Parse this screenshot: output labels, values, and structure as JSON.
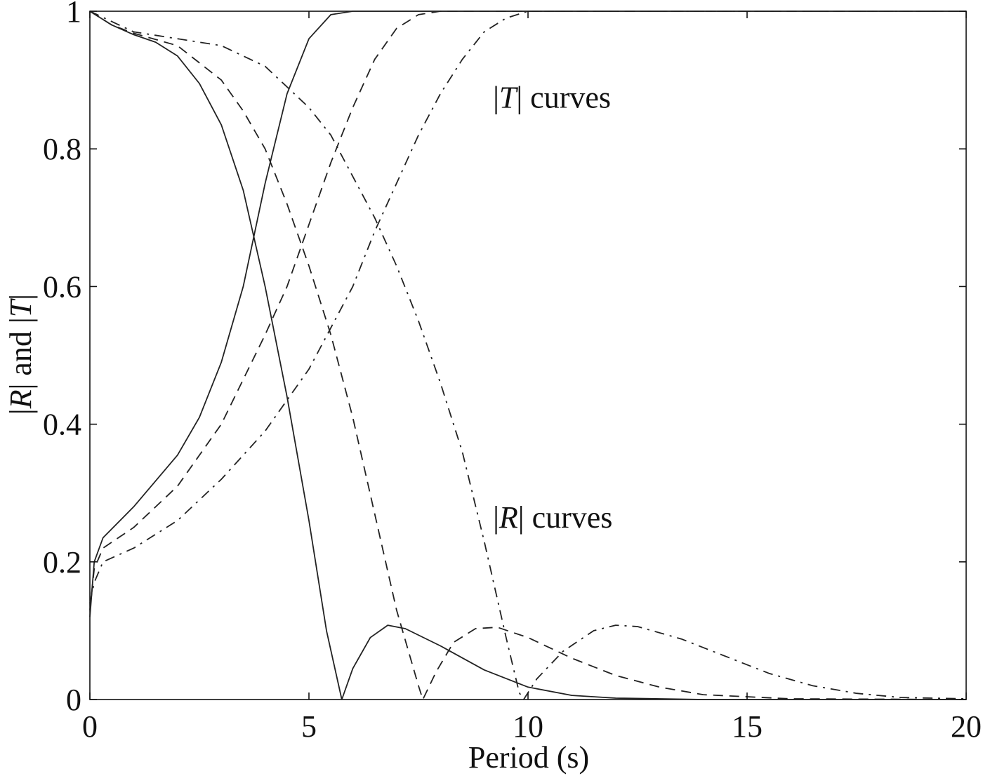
{
  "chart_data": {
    "type": "line",
    "xlabel": "Period (s)",
    "ylabel_parts": [
      "|",
      "R",
      "| and |",
      "T",
      "|"
    ],
    "xlim": [
      0,
      20
    ],
    "ylim": [
      0,
      1
    ],
    "xticks": [
      0,
      5,
      10,
      15,
      20
    ],
    "xtick_labels": [
      "0",
      "5",
      "10",
      "15",
      "20"
    ],
    "yticks": [
      0,
      0.2,
      0.4,
      0.6,
      0.8,
      1
    ],
    "ytick_labels": [
      "0",
      "0.2",
      "0.4",
      "0.6",
      "0.8",
      "1"
    ],
    "grid": false,
    "annotations": [
      {
        "id": "t",
        "pre": "|",
        "it": "T",
        "post": "| curves",
        "x": 9.2,
        "y": 0.86
      },
      {
        "id": "r",
        "pre": "|",
        "it": "R",
        "post": "| curves",
        "x": 9.2,
        "y": 0.25
      }
    ],
    "series": [
      {
        "style": "solid",
        "kind": "R",
        "points": [
          [
            0,
            1
          ],
          [
            0.5,
            0.98
          ],
          [
            1,
            0.966
          ],
          [
            1.5,
            0.955
          ],
          [
            2,
            0.935
          ],
          [
            2.5,
            0.895
          ],
          [
            3,
            0.835
          ],
          [
            3.5,
            0.74
          ],
          [
            4,
            0.6
          ],
          [
            4.5,
            0.44
          ],
          [
            5,
            0.26
          ],
          [
            5.4,
            0.1
          ],
          [
            5.75,
            0
          ],
          [
            6,
            0.045
          ],
          [
            6.4,
            0.09
          ],
          [
            6.8,
            0.108
          ],
          [
            7.2,
            0.103
          ],
          [
            8,
            0.078
          ],
          [
            9,
            0.043
          ],
          [
            10,
            0.018
          ],
          [
            11,
            0.006
          ],
          [
            12,
            0.002
          ],
          [
            14,
            0
          ],
          [
            20,
            0
          ]
        ]
      },
      {
        "style": "solid",
        "kind": "T",
        "points": [
          [
            0,
            0.12
          ],
          [
            0.1,
            0.2
          ],
          [
            0.3,
            0.235
          ],
          [
            1,
            0.28
          ],
          [
            2,
            0.355
          ],
          [
            2.5,
            0.41
          ],
          [
            3,
            0.49
          ],
          [
            3.5,
            0.6
          ],
          [
            4,
            0.75
          ],
          [
            4.5,
            0.88
          ],
          [
            5,
            0.96
          ],
          [
            5.5,
            0.995
          ],
          [
            6,
            1
          ],
          [
            20,
            1
          ]
        ]
      },
      {
        "style": "dashed",
        "kind": "R",
        "points": [
          [
            0,
            1
          ],
          [
            0.5,
            0.98
          ],
          [
            1,
            0.968
          ],
          [
            2,
            0.95
          ],
          [
            3,
            0.9
          ],
          [
            3.5,
            0.855
          ],
          [
            4,
            0.8
          ],
          [
            4.5,
            0.72
          ],
          [
            5,
            0.63
          ],
          [
            5.5,
            0.53
          ],
          [
            6,
            0.41
          ],
          [
            6.5,
            0.27
          ],
          [
            7,
            0.13
          ],
          [
            7.5,
            0.02
          ],
          [
            7.6,
            0
          ],
          [
            7.9,
            0.04
          ],
          [
            8.3,
            0.083
          ],
          [
            8.8,
            0.103
          ],
          [
            9.3,
            0.105
          ],
          [
            10,
            0.09
          ],
          [
            11,
            0.06
          ],
          [
            12,
            0.035
          ],
          [
            13,
            0.018
          ],
          [
            14,
            0.007
          ],
          [
            16,
            0.001
          ],
          [
            20,
            0
          ]
        ]
      },
      {
        "style": "dashed",
        "kind": "T",
        "points": [
          [
            0,
            0.13
          ],
          [
            0.1,
            0.19
          ],
          [
            0.3,
            0.22
          ],
          [
            1,
            0.25
          ],
          [
            2,
            0.31
          ],
          [
            3,
            0.4
          ],
          [
            4,
            0.53
          ],
          [
            4.5,
            0.6
          ],
          [
            5,
            0.69
          ],
          [
            5.5,
            0.78
          ],
          [
            6,
            0.86
          ],
          [
            6.5,
            0.93
          ],
          [
            7,
            0.975
          ],
          [
            7.5,
            0.995
          ],
          [
            8,
            1
          ],
          [
            20,
            1
          ]
        ]
      },
      {
        "style": "dashdot",
        "kind": "R",
        "points": [
          [
            0,
            1
          ],
          [
            1,
            0.97
          ],
          [
            2,
            0.96
          ],
          [
            3,
            0.95
          ],
          [
            4,
            0.92
          ],
          [
            5,
            0.86
          ],
          [
            5.5,
            0.82
          ],
          [
            6,
            0.76
          ],
          [
            6.5,
            0.7
          ],
          [
            7,
            0.63
          ],
          [
            7.5,
            0.55
          ],
          [
            8,
            0.46
          ],
          [
            8.5,
            0.36
          ],
          [
            9,
            0.23
          ],
          [
            9.5,
            0.09
          ],
          [
            9.8,
            0.01
          ],
          [
            9.9,
            0
          ],
          [
            10.2,
            0.03
          ],
          [
            10.8,
            0.07
          ],
          [
            11.5,
            0.1
          ],
          [
            12,
            0.108
          ],
          [
            12.5,
            0.106
          ],
          [
            13.5,
            0.088
          ],
          [
            14.5,
            0.063
          ],
          [
            15.5,
            0.038
          ],
          [
            16.5,
            0.02
          ],
          [
            17.5,
            0.009
          ],
          [
            18.5,
            0.003
          ],
          [
            20,
            0.001
          ]
        ]
      },
      {
        "style": "dashdot",
        "kind": "T",
        "points": [
          [
            0,
            0.14
          ],
          [
            0.1,
            0.17
          ],
          [
            0.3,
            0.2
          ],
          [
            1,
            0.22
          ],
          [
            2,
            0.26
          ],
          [
            3,
            0.32
          ],
          [
            4,
            0.39
          ],
          [
            5,
            0.48
          ],
          [
            6,
            0.6
          ],
          [
            6.5,
            0.68
          ],
          [
            7,
            0.75
          ],
          [
            7.5,
            0.82
          ],
          [
            8,
            0.88
          ],
          [
            8.5,
            0.93
          ],
          [
            9,
            0.97
          ],
          [
            9.5,
            0.99
          ],
          [
            10,
            1
          ],
          [
            20,
            1
          ]
        ]
      }
    ]
  }
}
